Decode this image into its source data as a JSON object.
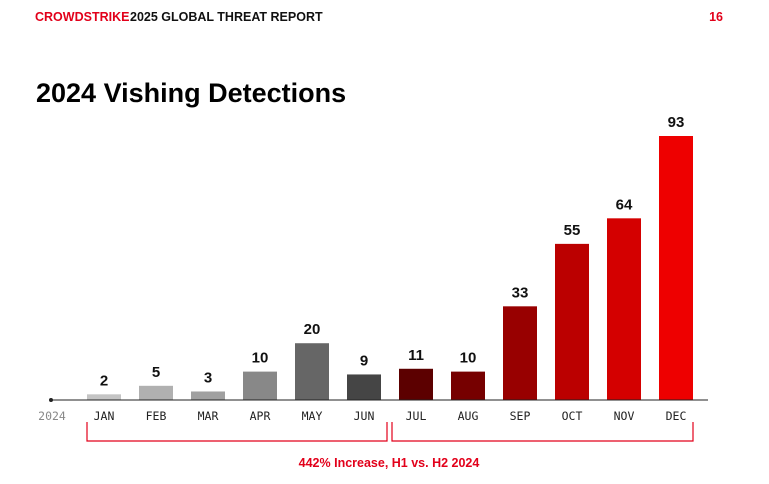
{
  "header": {
    "brand": "CROWDSTRIKE",
    "report": "2025 GLOBAL THREAT REPORT",
    "page_number": "16"
  },
  "chart_data": {
    "type": "bar",
    "title": "2024 Vishing Detections",
    "year_label": "2024",
    "categories": [
      "JAN",
      "FEB",
      "MAR",
      "APR",
      "MAY",
      "JUN",
      "JUL",
      "AUG",
      "SEP",
      "OCT",
      "NOV",
      "DEC"
    ],
    "values": [
      2,
      5,
      3,
      10,
      20,
      9,
      11,
      10,
      33,
      55,
      64,
      93
    ],
    "colors": [
      "#c4c4c4",
      "#b0b0b0",
      "#a0a0a0",
      "#888888",
      "#666666",
      "#454545",
      "#5c0000",
      "#760000",
      "#980000",
      "#bb0000",
      "#d40000",
      "#ee0000"
    ],
    "ylim": [
      0,
      93
    ],
    "grid": false,
    "annotation": "442% Increase, H1 vs. H2 2024",
    "accent_color": "#e2001a"
  }
}
